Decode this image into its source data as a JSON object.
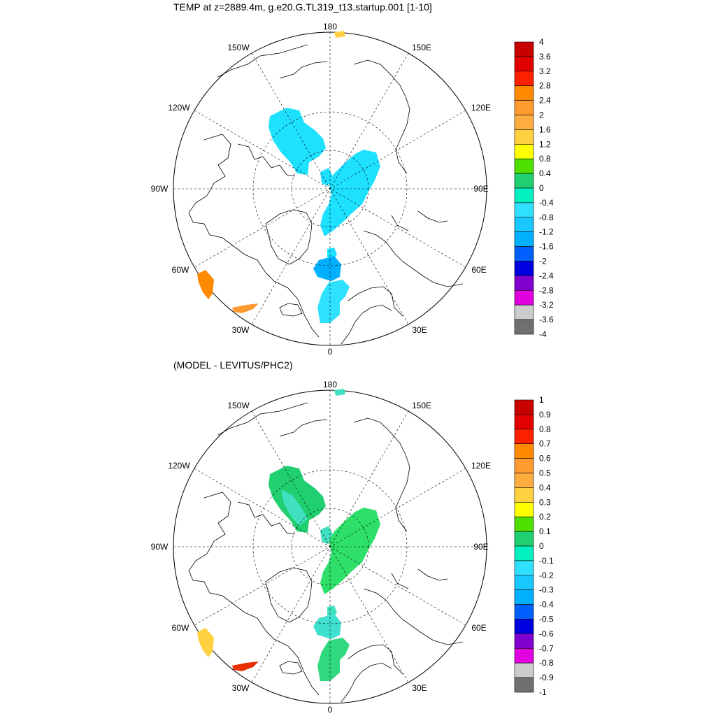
{
  "panels": [
    {
      "title": "TEMP at z=2889.4m, g.e20.G.TL319_t13.startup.001 [1-10]",
      "lon_labels": [
        "180",
        "150E",
        "120E",
        "90E",
        "60E",
        "30E",
        "0",
        "30W",
        "60W",
        "90W",
        "120W",
        "150W"
      ],
      "colorbar_labels": [
        "4",
        "3.6",
        "3.2",
        "2.8",
        "2.4",
        "2",
        "1.6",
        "1.2",
        "0.8",
        "0.4",
        "0",
        "-0.4",
        "-0.8",
        "-1.2",
        "-1.6",
        "-2",
        "-2.4",
        "-2.8",
        "-3.2",
        "-3.6",
        "-4"
      ],
      "colorbar_colors": [
        "#c80000",
        "#e30000",
        "#ff2000",
        "#ff8a00",
        "#ff9a30",
        "#ffac40",
        "#ffd040",
        "#ffff00",
        "#50e000",
        "#20d070",
        "#00f0c0",
        "#30e0ff",
        "#18c8ff",
        "#00b0ff",
        "#0060ff",
        "#0000e0",
        "#8000d0",
        "#e000e0",
        "#cccccc",
        "#707070"
      ]
    },
    {
      "title": "(MODEL - LEVITUS/PHC2)",
      "lon_labels": [
        "180",
        "150E",
        "120E",
        "90E",
        "60E",
        "30E",
        "0",
        "30W",
        "60W",
        "90W",
        "120W",
        "150W"
      ],
      "colorbar_labels": [
        "1",
        "0.9",
        "0.8",
        "0.7",
        "0.6",
        "0.5",
        "0.4",
        "0.3",
        "0.2",
        "0.1",
        "0",
        "-0.1",
        "-0.2",
        "-0.3",
        "-0.4",
        "-0.5",
        "-0.6",
        "-0.7",
        "-0.8",
        "-0.9",
        "-1"
      ],
      "colorbar_colors": [
        "#c80000",
        "#e30000",
        "#ff2000",
        "#ff8a00",
        "#ff9a30",
        "#ffac40",
        "#ffd040",
        "#ffff00",
        "#50e000",
        "#20d070",
        "#00f0c0",
        "#30e0ff",
        "#18c8ff",
        "#00b0ff",
        "#0060ff",
        "#0000e0",
        "#8000d0",
        "#e000e0",
        "#cccccc",
        "#707070"
      ]
    }
  ],
  "field_colors": {
    "panel1": {
      "main": "#1ee0ff",
      "greenland_sea": "#18c8ff",
      "lofoten": "#00b0ff",
      "norwegian": "#30e0ff",
      "irminger": "#ff8a00",
      "labrador_corner": "#ff9a30",
      "bering_yellow": "#ffd040"
    },
    "panel2": {
      "main": "#2ee06a",
      "canada_basin": "#20d070",
      "canada_inner": "#40e0c0",
      "greenland_sea": "#40e0d0",
      "norwegian": "#30d880",
      "irminger": "#e83000",
      "labrador_corner": "#ffd040"
    }
  }
}
